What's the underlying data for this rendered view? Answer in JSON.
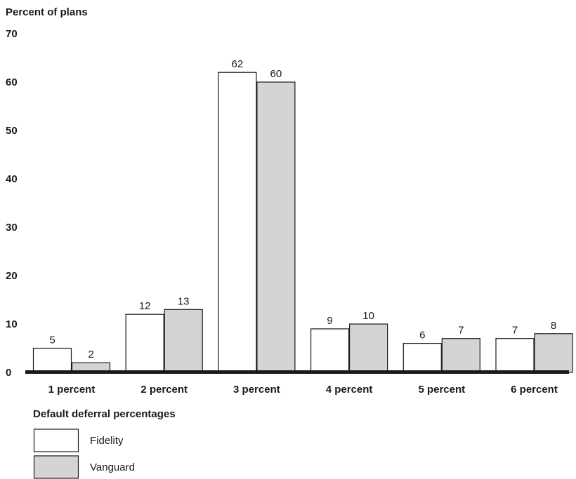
{
  "chart_data": {
    "type": "bar",
    "ylabel": "Percent of plans",
    "xlabel": "Default deferral percentages",
    "categories": [
      "1 percent",
      "2 percent",
      "3 percent",
      "4 percent",
      "5 percent",
      "6 percent"
    ],
    "series": [
      {
        "name": "Fidelity",
        "values": [
          5,
          12,
          62,
          9,
          6,
          7
        ],
        "color": "#ffffff"
      },
      {
        "name": "Vanguard",
        "values": [
          2,
          13,
          60,
          10,
          7,
          8
        ],
        "color": "#d4d4d4"
      }
    ],
    "ylim": [
      0,
      70
    ],
    "yticks": [
      0,
      10,
      20,
      30,
      40,
      50,
      60,
      70
    ],
    "grid": false,
    "legend_position": "bottom-left",
    "data_labels": true
  }
}
